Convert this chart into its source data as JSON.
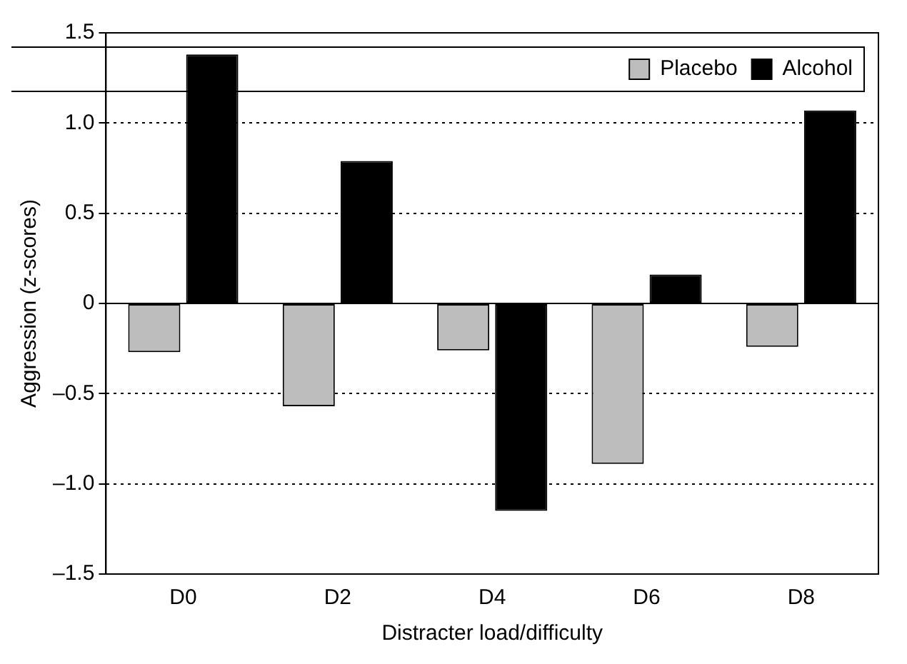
{
  "chart_data": {
    "type": "bar",
    "xlabel": "Distracter load/difficulty",
    "ylabel": "Aggression (z-scores)",
    "categories": [
      "D0",
      "D2",
      "D4",
      "D6",
      "D8"
    ],
    "series": [
      {
        "name": "Placebo",
        "color": "#bdbdbd",
        "values": [
          -0.27,
          -0.57,
          -0.26,
          -0.89,
          -0.24
        ]
      },
      {
        "name": "Alcohol",
        "color": "#000000",
        "values": [
          1.38,
          0.79,
          -1.15,
          0.16,
          1.07
        ]
      }
    ],
    "ylim": [
      -1.5,
      1.5
    ],
    "yticks": [
      {
        "value": -1.5,
        "label": "–1.5"
      },
      {
        "value": -1,
        "label": "–1.0"
      },
      {
        "value": -0.5,
        "label": "–0.5"
      },
      0,
      0.5,
      {
        "value": 1,
        "label": "1.0"
      },
      1.5
    ],
    "grid": "y",
    "legend": "top right"
  }
}
